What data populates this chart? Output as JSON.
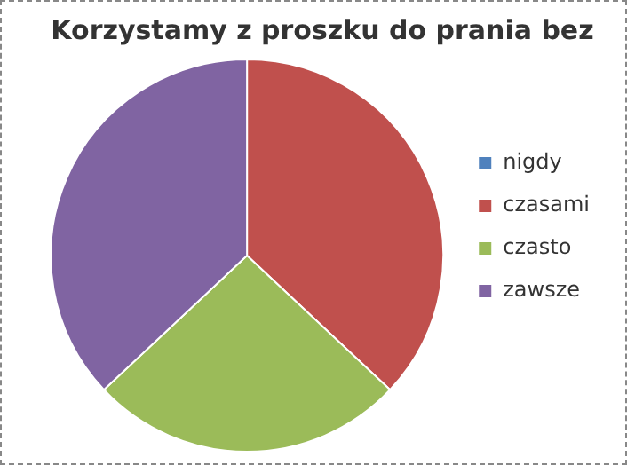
{
  "chart_data": {
    "type": "pie",
    "title": "Korzystamy z proszku do prania bez",
    "categories": [
      "nigdy",
      "czasami",
      "czasto",
      "zawsze"
    ],
    "values": [
      0,
      37,
      26,
      37
    ],
    "colors": [
      "#4f81bd",
      "#c0504d",
      "#9bbb59",
      "#8064a2"
    ],
    "legend": "right"
  }
}
